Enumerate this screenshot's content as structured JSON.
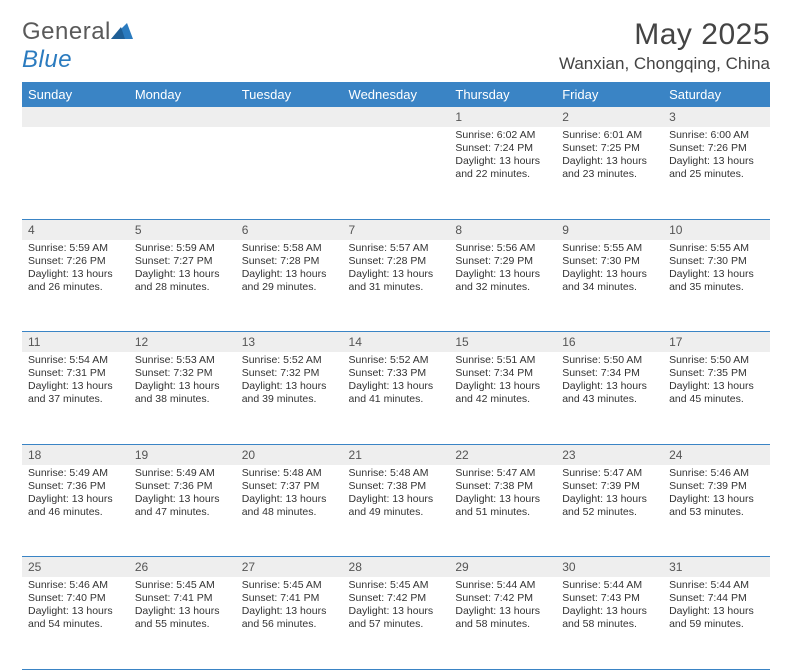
{
  "brand": {
    "general": "General",
    "blue": "Blue"
  },
  "colors": {
    "header_bg": "#3a84c5",
    "header_text": "#ffffff",
    "daynum_bg": "#eeeeee",
    "rule": "#3a84c5",
    "text": "#333333",
    "logo_gray": "#5a5a5a",
    "logo_blue": "#2b7bbf"
  },
  "title": "May 2025",
  "location": "Wanxian, Chongqing, China",
  "dow": [
    "Sunday",
    "Monday",
    "Tuesday",
    "Wednesday",
    "Thursday",
    "Friday",
    "Saturday"
  ],
  "first_weekday": 4,
  "days": [
    {
      "n": 1,
      "sr": "6:02 AM",
      "ss": "7:24 PM",
      "dl": "13 hours and 22 minutes."
    },
    {
      "n": 2,
      "sr": "6:01 AM",
      "ss": "7:25 PM",
      "dl": "13 hours and 23 minutes."
    },
    {
      "n": 3,
      "sr": "6:00 AM",
      "ss": "7:26 PM",
      "dl": "13 hours and 25 minutes."
    },
    {
      "n": 4,
      "sr": "5:59 AM",
      "ss": "7:26 PM",
      "dl": "13 hours and 26 minutes."
    },
    {
      "n": 5,
      "sr": "5:59 AM",
      "ss": "7:27 PM",
      "dl": "13 hours and 28 minutes."
    },
    {
      "n": 6,
      "sr": "5:58 AM",
      "ss": "7:28 PM",
      "dl": "13 hours and 29 minutes."
    },
    {
      "n": 7,
      "sr": "5:57 AM",
      "ss": "7:28 PM",
      "dl": "13 hours and 31 minutes."
    },
    {
      "n": 8,
      "sr": "5:56 AM",
      "ss": "7:29 PM",
      "dl": "13 hours and 32 minutes."
    },
    {
      "n": 9,
      "sr": "5:55 AM",
      "ss": "7:30 PM",
      "dl": "13 hours and 34 minutes."
    },
    {
      "n": 10,
      "sr": "5:55 AM",
      "ss": "7:30 PM",
      "dl": "13 hours and 35 minutes."
    },
    {
      "n": 11,
      "sr": "5:54 AM",
      "ss": "7:31 PM",
      "dl": "13 hours and 37 minutes."
    },
    {
      "n": 12,
      "sr": "5:53 AM",
      "ss": "7:32 PM",
      "dl": "13 hours and 38 minutes."
    },
    {
      "n": 13,
      "sr": "5:52 AM",
      "ss": "7:32 PM",
      "dl": "13 hours and 39 minutes."
    },
    {
      "n": 14,
      "sr": "5:52 AM",
      "ss": "7:33 PM",
      "dl": "13 hours and 41 minutes."
    },
    {
      "n": 15,
      "sr": "5:51 AM",
      "ss": "7:34 PM",
      "dl": "13 hours and 42 minutes."
    },
    {
      "n": 16,
      "sr": "5:50 AM",
      "ss": "7:34 PM",
      "dl": "13 hours and 43 minutes."
    },
    {
      "n": 17,
      "sr": "5:50 AM",
      "ss": "7:35 PM",
      "dl": "13 hours and 45 minutes."
    },
    {
      "n": 18,
      "sr": "5:49 AM",
      "ss": "7:36 PM",
      "dl": "13 hours and 46 minutes."
    },
    {
      "n": 19,
      "sr": "5:49 AM",
      "ss": "7:36 PM",
      "dl": "13 hours and 47 minutes."
    },
    {
      "n": 20,
      "sr": "5:48 AM",
      "ss": "7:37 PM",
      "dl": "13 hours and 48 minutes."
    },
    {
      "n": 21,
      "sr": "5:48 AM",
      "ss": "7:38 PM",
      "dl": "13 hours and 49 minutes."
    },
    {
      "n": 22,
      "sr": "5:47 AM",
      "ss": "7:38 PM",
      "dl": "13 hours and 51 minutes."
    },
    {
      "n": 23,
      "sr": "5:47 AM",
      "ss": "7:39 PM",
      "dl": "13 hours and 52 minutes."
    },
    {
      "n": 24,
      "sr": "5:46 AM",
      "ss": "7:39 PM",
      "dl": "13 hours and 53 minutes."
    },
    {
      "n": 25,
      "sr": "5:46 AM",
      "ss": "7:40 PM",
      "dl": "13 hours and 54 minutes."
    },
    {
      "n": 26,
      "sr": "5:45 AM",
      "ss": "7:41 PM",
      "dl": "13 hours and 55 minutes."
    },
    {
      "n": 27,
      "sr": "5:45 AM",
      "ss": "7:41 PM",
      "dl": "13 hours and 56 minutes."
    },
    {
      "n": 28,
      "sr": "5:45 AM",
      "ss": "7:42 PM",
      "dl": "13 hours and 57 minutes."
    },
    {
      "n": 29,
      "sr": "5:44 AM",
      "ss": "7:42 PM",
      "dl": "13 hours and 58 minutes."
    },
    {
      "n": 30,
      "sr": "5:44 AM",
      "ss": "7:43 PM",
      "dl": "13 hours and 58 minutes."
    },
    {
      "n": 31,
      "sr": "5:44 AM",
      "ss": "7:44 PM",
      "dl": "13 hours and 59 minutes."
    }
  ],
  "labels": {
    "sunrise": "Sunrise:",
    "sunset": "Sunset:",
    "daylight": "Daylight:"
  }
}
